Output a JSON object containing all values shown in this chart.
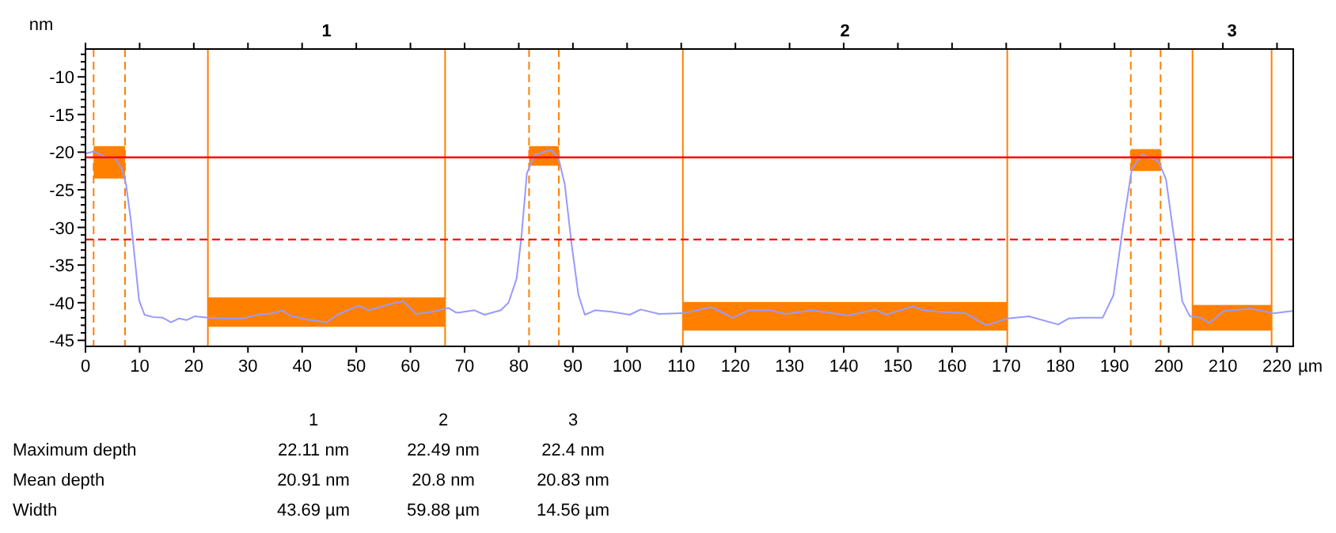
{
  "chart_data": {
    "type": "line",
    "xlabel": "µm",
    "ylabel": "nm",
    "xlim": [
      0,
      223
    ],
    "ylim": [
      -45.8,
      -6.3
    ],
    "xticks": [
      0,
      10,
      20,
      30,
      40,
      50,
      60,
      70,
      80,
      90,
      100,
      110,
      120,
      130,
      140,
      150,
      160,
      170,
      180,
      190,
      200,
      210,
      220
    ],
    "yticks": [
      {
        "value": -45,
        "label": "-45"
      },
      {
        "value": -44,
        "label": null
      },
      {
        "value": -43,
        "label": null
      },
      {
        "value": -42,
        "label": null
      },
      {
        "value": -41,
        "label": null
      },
      {
        "value": -40,
        "label": "-40"
      },
      {
        "value": -39,
        "label": null
      },
      {
        "value": -38,
        "label": null
      },
      {
        "value": -37,
        "label": null
      },
      {
        "value": -36,
        "label": null
      },
      {
        "value": -35,
        "label": "-35"
      },
      {
        "value": -34,
        "label": null
      },
      {
        "value": -33,
        "label": null
      },
      {
        "value": -32,
        "label": null
      },
      {
        "value": -31,
        "label": null
      },
      {
        "value": -30,
        "label": "-30"
      },
      {
        "value": -29,
        "label": null
      },
      {
        "value": -28,
        "label": null
      },
      {
        "value": -27,
        "label": null
      },
      {
        "value": -26,
        "label": null
      },
      {
        "value": -25,
        "label": "-25"
      },
      {
        "value": -24,
        "label": null
      },
      {
        "value": -23,
        "label": null
      },
      {
        "value": -22,
        "label": null
      },
      {
        "value": -21,
        "label": null
      },
      {
        "value": -20,
        "label": "-20"
      },
      {
        "value": -19,
        "label": null
      },
      {
        "value": -18,
        "label": null
      },
      {
        "value": -17,
        "label": null
      },
      {
        "value": -16,
        "label": null
      },
      {
        "value": -15,
        "label": "-15"
      },
      {
        "value": -14,
        "label": null
      },
      {
        "value": -13,
        "label": null
      },
      {
        "value": -12,
        "label": null
      },
      {
        "value": -11,
        "label": null
      },
      {
        "value": -10,
        "label": "-10"
      },
      {
        "value": -9,
        "label": null
      },
      {
        "value": -8,
        "label": null
      },
      {
        "value": -7,
        "label": null
      }
    ],
    "ref_lines": [
      {
        "axis": "y",
        "value": -20.7,
        "color": "#ff0000",
        "line_style": "solid"
      },
      {
        "axis": "y",
        "value": -31.6,
        "color": "#ff0000",
        "line_style": "dashed"
      },
      {
        "axis": "x",
        "value": 1.5,
        "color": "#ff8000",
        "line_style": "dashed"
      },
      {
        "axis": "x",
        "value": 7.3,
        "color": "#ff8000",
        "line_style": "dashed"
      },
      {
        "axis": "x",
        "value": 22.6,
        "color": "#ff8000",
        "line_style": "solid"
      },
      {
        "axis": "x",
        "value": 66.4,
        "color": "#ff8000",
        "line_style": "solid"
      },
      {
        "axis": "x",
        "value": 81.9,
        "color": "#ff8000",
        "line_style": "dashed"
      },
      {
        "axis": "x",
        "value": 87.4,
        "color": "#ff8000",
        "line_style": "dashed"
      },
      {
        "axis": "x",
        "value": 110.3,
        "color": "#ff8000",
        "line_style": "solid"
      },
      {
        "axis": "x",
        "value": 170.2,
        "color": "#ff8000",
        "line_style": "solid"
      },
      {
        "axis": "x",
        "value": 193,
        "color": "#ff8000",
        "line_style": "dashed"
      },
      {
        "axis": "x",
        "value": 198.5,
        "color": "#ff8000",
        "line_style": "dashed"
      },
      {
        "axis": "x",
        "value": 204.4,
        "color": "#ff8000",
        "line_style": "solid"
      },
      {
        "axis": "x",
        "value": 219,
        "color": "#ff8000",
        "line_style": "solid"
      }
    ],
    "series": [
      {
        "type": "histogram",
        "color": "#ff8000",
        "bins": [
          1.5,
          7.3,
          22.6,
          66.4,
          81.9,
          87.4,
          110.3,
          170.2,
          193,
          198.5,
          204.4,
          219
        ],
        "base": [
          -23.5,
          null,
          -43.2,
          null,
          -21.8,
          null,
          -43.7,
          null,
          -22.5,
          null,
          -43.7
        ],
        "values": [
          4.3,
          null,
          3.9,
          null,
          2.6,
          null,
          3.8,
          null,
          2.9,
          null,
          3.4
        ]
      },
      {
        "color": "#9999ff",
        "x": [
          0,
          1.5,
          3.6,
          5.5,
          6.7,
          7.5,
          8.4,
          9.2,
          9.9,
          10.9,
          12.4,
          14.3,
          15.8,
          17.2,
          18.7,
          20.2,
          22.6,
          25.1,
          29,
          31.9,
          34.8,
          36.3,
          37.7,
          40.6,
          44.5,
          46.5,
          50.4,
          52.3,
          56.2,
          58.7,
          61.1,
          64.1,
          67,
          68.4,
          69,
          71.8,
          73.7,
          76.7,
          78.1,
          79.6,
          80.5,
          81.5,
          82.9,
          85.9,
          87.3,
          88.5,
          89.7,
          91,
          92.2,
          94.1,
          97.1,
          100.5,
          102.5,
          105.9,
          110.3,
          115.6,
          119.5,
          122.5,
          126.4,
          129.3,
          134.1,
          140.9,
          145.8,
          147.8,
          152.7,
          154.7,
          157.6,
          162.5,
          166.3,
          170.3,
          174.2,
          179.6,
          181.5,
          183.9,
          187.8,
          189.8,
          191.7,
          193.2,
          195.1,
          198.1,
          199.5,
          201,
          202.5,
          203.9,
          205.9,
          207.5,
          210.2,
          215.1,
          219.5,
          222.9
        ],
        "values": [
          -20.2,
          -19.9,
          -20.6,
          -20.8,
          -22.2,
          -24.3,
          -29.2,
          -34.8,
          -39.7,
          -41.6,
          -41.9,
          -42,
          -42.6,
          -42.1,
          -42.3,
          -41.8,
          -42,
          -42.1,
          -42.1,
          -41.6,
          -41.4,
          -41,
          -41.7,
          -42.2,
          -42.6,
          -41.6,
          -40.4,
          -41,
          -40.2,
          -39.8,
          -41.5,
          -41.2,
          -40.7,
          -41.3,
          -41.3,
          -41,
          -41.6,
          -41,
          -40,
          -36.8,
          -31.2,
          -22.8,
          -20.4,
          -19.7,
          -20.7,
          -24.3,
          -31.9,
          -38.9,
          -41.6,
          -41,
          -41.2,
          -41.6,
          -40.9,
          -41.5,
          -41.4,
          -40.6,
          -42,
          -41,
          -41,
          -41.5,
          -41,
          -41.7,
          -40.9,
          -41.6,
          -40.5,
          -41,
          -41.2,
          -41.4,
          -43,
          -42.1,
          -41.8,
          -42.9,
          -42.1,
          -42,
          -42,
          -39,
          -29.2,
          -22.2,
          -20.3,
          -21.2,
          -23.6,
          -31.4,
          -39.8,
          -41.8,
          -42,
          -42.7,
          -41.1,
          -40.8,
          -41.4,
          -41.1
        ]
      }
    ],
    "annotations": [
      "1",
      "2",
      "3",
      "1",
      "2",
      "3",
      "Maximum depth",
      "22.11 nm",
      "22.49 nm",
      "22.4 nm",
      "Mean depth",
      "20.91 nm",
      "20.8 nm",
      "20.83 nm",
      "Width",
      "43.69 µm",
      "59.88 µm",
      "14.56 µm"
    ]
  }
}
